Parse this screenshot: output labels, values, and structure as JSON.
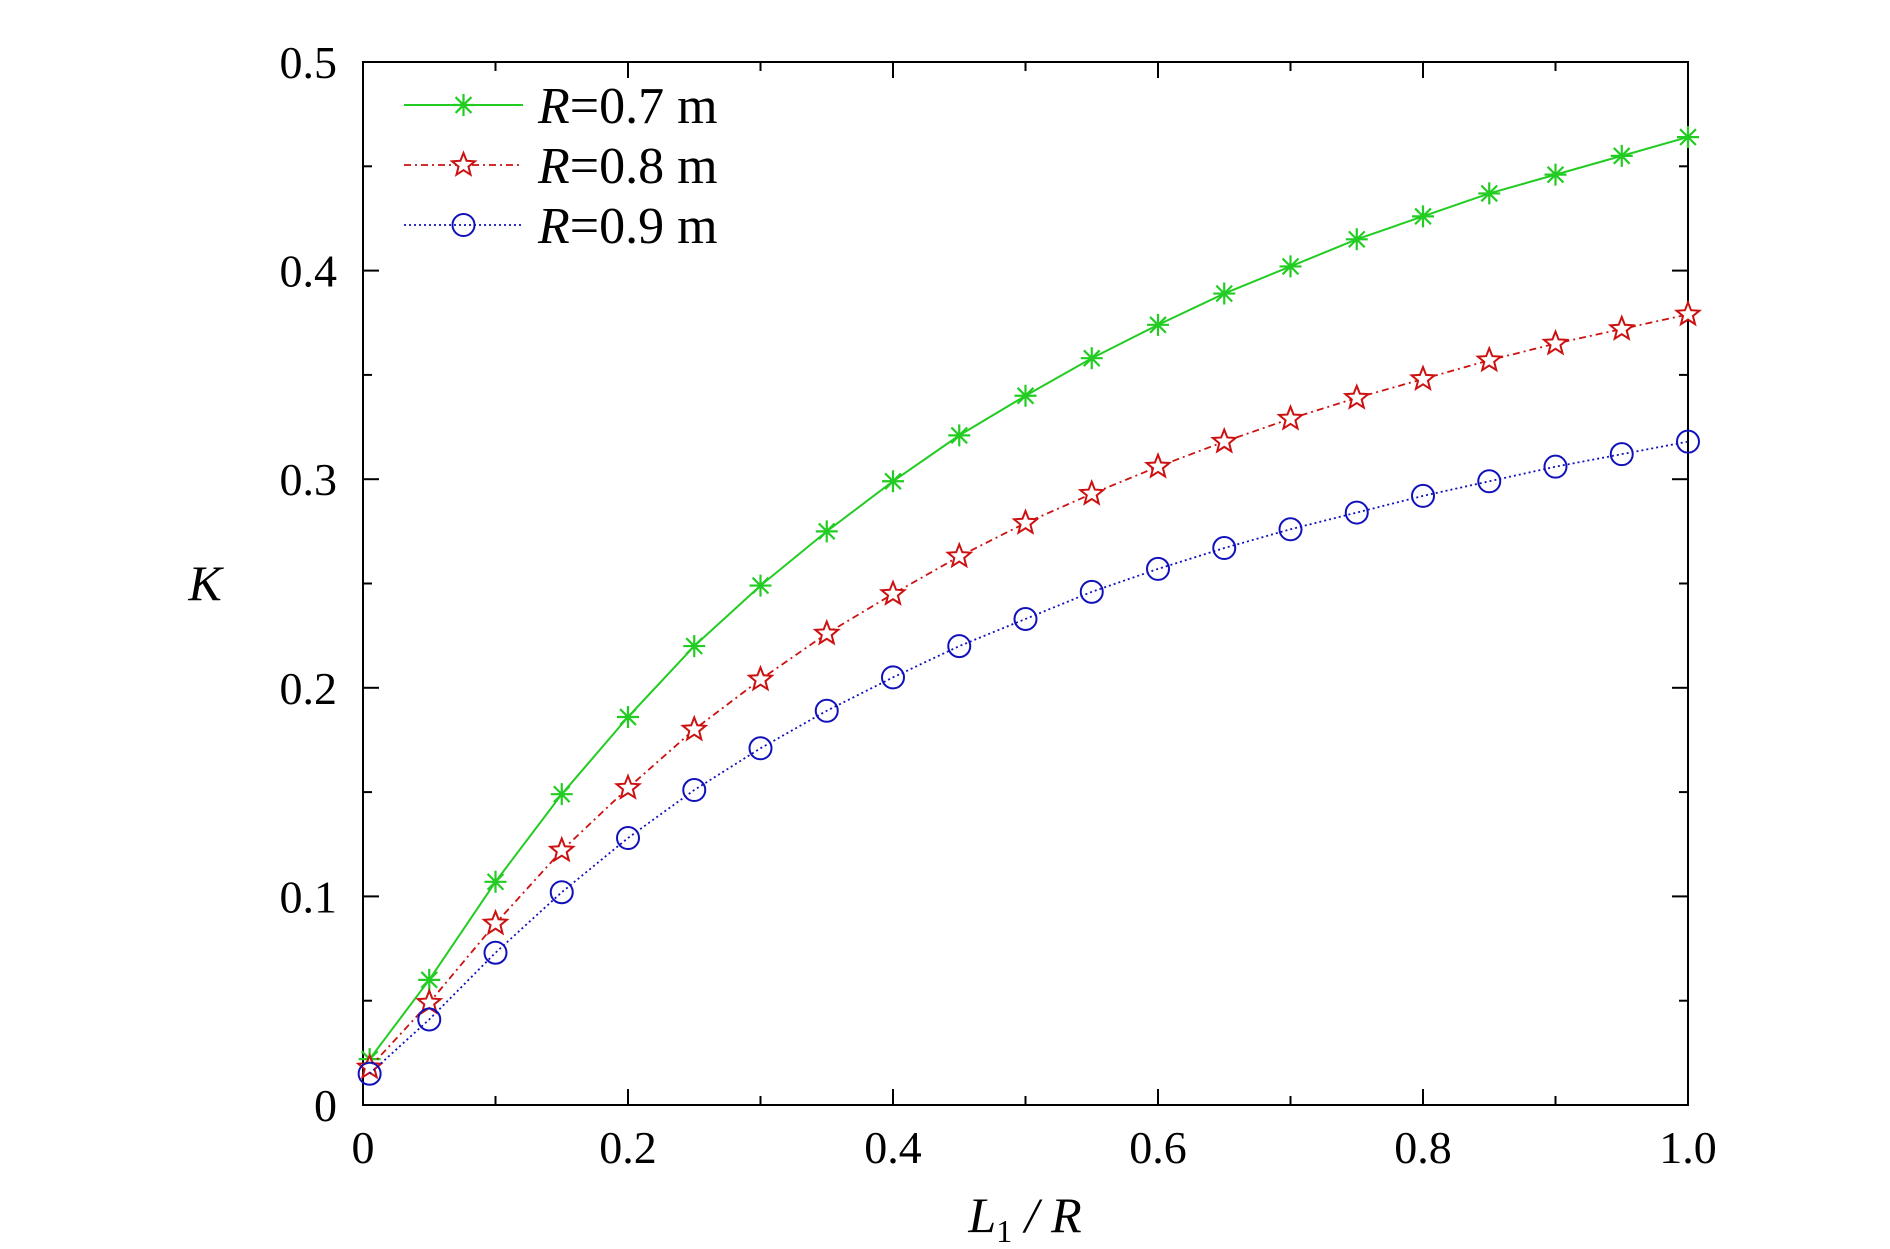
{
  "chart_data": {
    "type": "line",
    "title": "",
    "xlabel": {
      "main": "L",
      "sub": "1",
      "rest": " / R"
    },
    "ylabel": "K",
    "xlim": [
      0,
      1.0
    ],
    "ylim": [
      0,
      0.5
    ],
    "x_ticks": [
      {
        "value": 0,
        "label": "0"
      },
      {
        "value": 0.2,
        "label": "0.2"
      },
      {
        "value": 0.4,
        "label": "0.4"
      },
      {
        "value": 0.6,
        "label": "0.6"
      },
      {
        "value": 0.8,
        "label": "0.8"
      },
      {
        "value": 1.0,
        "label": "1.0"
      }
    ],
    "y_ticks": [
      {
        "value": 0,
        "label": "0"
      },
      {
        "value": 0.1,
        "label": "0.1"
      },
      {
        "value": 0.2,
        "label": "0.2"
      },
      {
        "value": 0.3,
        "label": "0.3"
      },
      {
        "value": 0.4,
        "label": "0.4"
      },
      {
        "value": 0.5,
        "label": "0.5"
      }
    ],
    "grid": false,
    "legend_position": "top-left",
    "x": [
      0.005,
      0.05,
      0.1,
      0.15,
      0.2,
      0.25,
      0.3,
      0.35,
      0.4,
      0.45,
      0.5,
      0.55,
      0.6,
      0.65,
      0.7,
      0.75,
      0.8,
      0.85,
      0.9,
      0.95,
      1.0
    ],
    "series": [
      {
        "name": "R = 0.7 m",
        "legend": {
          "var": "R",
          "rest": "=0.7 m"
        },
        "color": "#22cc22",
        "marker": "asterisk",
        "dash": "solid",
        "values": [
          0.022,
          0.06,
          0.107,
          0.149,
          0.186,
          0.22,
          0.249,
          0.275,
          0.299,
          0.321,
          0.34,
          0.358,
          0.374,
          0.389,
          0.402,
          0.415,
          0.426,
          0.437,
          0.446,
          0.455,
          0.464
        ]
      },
      {
        "name": "R = 0.8 m",
        "legend": {
          "var": "R",
          "rest": "=0.8 m"
        },
        "color": "#cc1111",
        "marker": "star",
        "dash": "dashdot",
        "values": [
          0.018,
          0.049,
          0.087,
          0.122,
          0.152,
          0.18,
          0.204,
          0.226,
          0.245,
          0.263,
          0.279,
          0.293,
          0.306,
          0.318,
          0.329,
          0.339,
          0.348,
          0.357,
          0.365,
          0.372,
          0.379
        ]
      },
      {
        "name": "R = 0.9 m",
        "legend": {
          "var": "R",
          "rest": "=0.9 m"
        },
        "color": "#1111bb",
        "marker": "circle",
        "dash": "dotted",
        "values": [
          0.015,
          0.041,
          0.073,
          0.102,
          0.128,
          0.151,
          0.171,
          0.189,
          0.205,
          0.22,
          0.233,
          0.246,
          0.257,
          0.267,
          0.276,
          0.284,
          0.292,
          0.299,
          0.306,
          0.312,
          0.318
        ]
      }
    ]
  }
}
